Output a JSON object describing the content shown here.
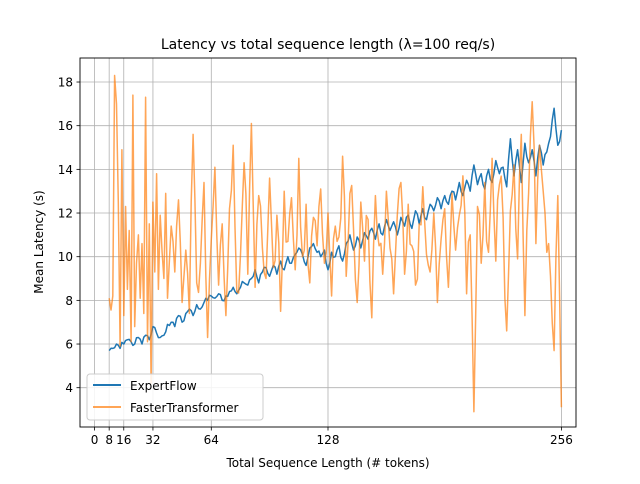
{
  "chart_data": {
    "type": "line",
    "title": "Latency vs total sequence length (λ=100 req/s)",
    "xlabel": "Total Sequence Length (# tokens)",
    "ylabel": "Mean Latency (s)",
    "xlim": [
      -8,
      264
    ],
    "ylim": [
      2.2,
      19.1
    ],
    "x_ticks": [
      0,
      8,
      16,
      32,
      64,
      128,
      256
    ],
    "y_ticks": [
      4,
      6,
      8,
      10,
      12,
      14,
      16,
      18
    ],
    "grid": true,
    "legend_position": "lower left",
    "series": [
      {
        "name": "ExpertFlow",
        "color": "#1f77b4",
        "anchor_x": [
          8,
          10,
          12,
          14,
          16,
          18,
          20,
          22,
          24,
          26,
          28,
          30,
          32,
          34,
          36,
          38,
          40,
          42,
          44,
          46,
          48,
          50,
          52,
          54,
          56,
          58,
          60,
          62,
          64,
          66,
          68,
          70,
          72,
          74,
          76,
          78,
          80,
          82,
          84,
          86,
          88,
          90,
          92,
          94,
          96,
          98,
          100,
          102,
          104,
          106,
          108,
          110,
          112,
          114,
          116,
          118,
          120,
          122,
          124,
          126,
          128,
          130,
          132,
          134,
          136,
          138,
          140,
          142,
          144,
          146,
          148,
          150,
          152,
          154,
          156,
          158,
          160,
          162,
          164,
          166,
          168,
          170,
          172,
          174,
          176,
          178,
          180,
          182,
          184,
          186,
          188,
          190,
          192,
          194,
          196,
          198,
          200,
          202,
          204,
          206,
          208,
          210,
          212,
          214,
          216,
          218,
          220,
          222,
          224,
          226,
          228,
          230,
          232,
          234,
          236,
          238,
          240,
          242,
          244,
          246,
          248,
          250,
          252,
          254,
          256
        ],
        "anchor_y": [
          5.7,
          5.8,
          6.0,
          5.8,
          6.0,
          6.2,
          6.1,
          6.0,
          6.3,
          6.0,
          6.4,
          6.2,
          6.8,
          6.5,
          6.3,
          6.4,
          6.9,
          7.0,
          6.8,
          7.3,
          7.0,
          7.4,
          7.6,
          7.3,
          7.8,
          7.6,
          7.9,
          8.0,
          8.2,
          8.1,
          8.3,
          8.0,
          8.2,
          8.4,
          8.6,
          8.3,
          8.6,
          8.8,
          8.7,
          9.0,
          9.4,
          8.8,
          9.3,
          9.5,
          9.1,
          9.6,
          9.2,
          9.8,
          9.4,
          10.0,
          9.7,
          10.1,
          10.4,
          10.1,
          9.6,
          10.4,
          10.6,
          10.2,
          10.0,
          10.3,
          9.4,
          10.2,
          10.0,
          10.5,
          9.8,
          10.6,
          11.0,
          10.3,
          10.9,
          10.4,
          11.1,
          10.8,
          11.3,
          10.8,
          11.5,
          11.0,
          11.7,
          11.2,
          11.6,
          11.0,
          11.8,
          11.4,
          11.9,
          11.3,
          12.1,
          11.5,
          12.2,
          11.7,
          12.4,
          12.1,
          12.7,
          12.2,
          12.8,
          12.4,
          13.0,
          12.6,
          13.4,
          12.8,
          13.5,
          13.0,
          14.2,
          13.3,
          13.8,
          13.1,
          14.0,
          13.4,
          14.4,
          13.8,
          14.1,
          13.2,
          15.4,
          13.7,
          14.9,
          13.4,
          15.2,
          14.3,
          14.9,
          13.7,
          15.1,
          14.2,
          14.8,
          15.5,
          16.8,
          15.1,
          15.8
        ]
      },
      {
        "name": "FasterTransformer",
        "color": "#ff7f0e",
        "anchor_x": [
          8,
          10,
          11,
          12,
          13,
          14,
          15,
          16,
          17,
          18,
          19,
          20,
          21,
          22,
          23,
          24,
          25,
          26,
          27,
          28,
          29,
          30,
          31,
          32,
          33,
          34,
          35,
          36,
          37,
          38,
          39,
          40,
          42,
          44,
          46,
          48,
          50,
          52,
          54,
          56,
          58,
          60,
          62,
          64,
          66,
          68,
          70,
          72,
          74,
          76,
          78,
          80,
          82,
          84,
          86,
          88,
          90,
          92,
          94,
          96,
          98,
          100,
          102,
          104,
          106,
          108,
          110,
          112,
          114,
          116,
          118,
          120,
          122,
          124,
          126,
          128,
          130,
          132,
          134,
          136,
          138,
          140,
          142,
          144,
          146,
          148,
          150,
          152,
          154,
          156,
          158,
          160,
          162,
          164,
          166,
          168,
          170,
          172,
          174,
          176,
          178,
          180,
          182,
          184,
          186,
          188,
          190,
          192,
          194,
          196,
          198,
          200,
          202,
          204,
          206,
          208,
          210,
          212,
          214,
          216,
          218,
          220,
          222,
          224,
          226,
          228,
          230,
          232,
          234,
          236,
          238,
          240,
          242,
          244,
          246,
          248,
          250,
          252,
          254,
          256
        ],
        "anchor_y": [
          8.1,
          8.2,
          18.3,
          17.0,
          12.5,
          5.9,
          14.9,
          7.3,
          12.3,
          8.5,
          11.2,
          6.1,
          17.4,
          6.8,
          9.7,
          11.0,
          8.1,
          10.6,
          7.4,
          17.3,
          6.1,
          11.5,
          4.2,
          12.5,
          9.3,
          13.8,
          8.5,
          11.9,
          10.2,
          9.0,
          12.9,
          8.1,
          11.4,
          9.3,
          12.6,
          7.9,
          10.3,
          7.4,
          15.6,
          8.8,
          9.7,
          13.4,
          6.3,
          10.8,
          14.1,
          8.7,
          11.5,
          7.3,
          12.2,
          15.1,
          8.4,
          10.1,
          14.3,
          9.2,
          16.1,
          8.6,
          12.8,
          10.4,
          9.0,
          13.6,
          9.5,
          11.9,
          7.5,
          13.0,
          10.7,
          12.7,
          9.4,
          14.5,
          10.0,
          12.4,
          8.8,
          11.8,
          10.5,
          13.1,
          9.7,
          12.0,
          8.2,
          11.4,
          10.9,
          14.6,
          9.1,
          12.9,
          11.3,
          7.9,
          12.5,
          9.8,
          11.7,
          7.2,
          12.8,
          10.5,
          9.2,
          13.0,
          10.4,
          8.3,
          11.9,
          13.4,
          9.2,
          12.4,
          10.5,
          8.7,
          11.5,
          13.2,
          10.1,
          9.3,
          12.0,
          7.9,
          10.8,
          12.2,
          8.6,
          12.9,
          10.3,
          11.9,
          13.7,
          8.3,
          11.0,
          2.9,
          12.3,
          9.7,
          13.4,
          10.2,
          14.5,
          9.8,
          13.3,
          11.8,
          6.6,
          12.1,
          14.2,
          9.9,
          15.6,
          7.3,
          12.9,
          17.1,
          10.6,
          15.1,
          13.0,
          10.2,
          9.1,
          5.7,
          12.8,
          3.1
        ]
      }
    ]
  }
}
